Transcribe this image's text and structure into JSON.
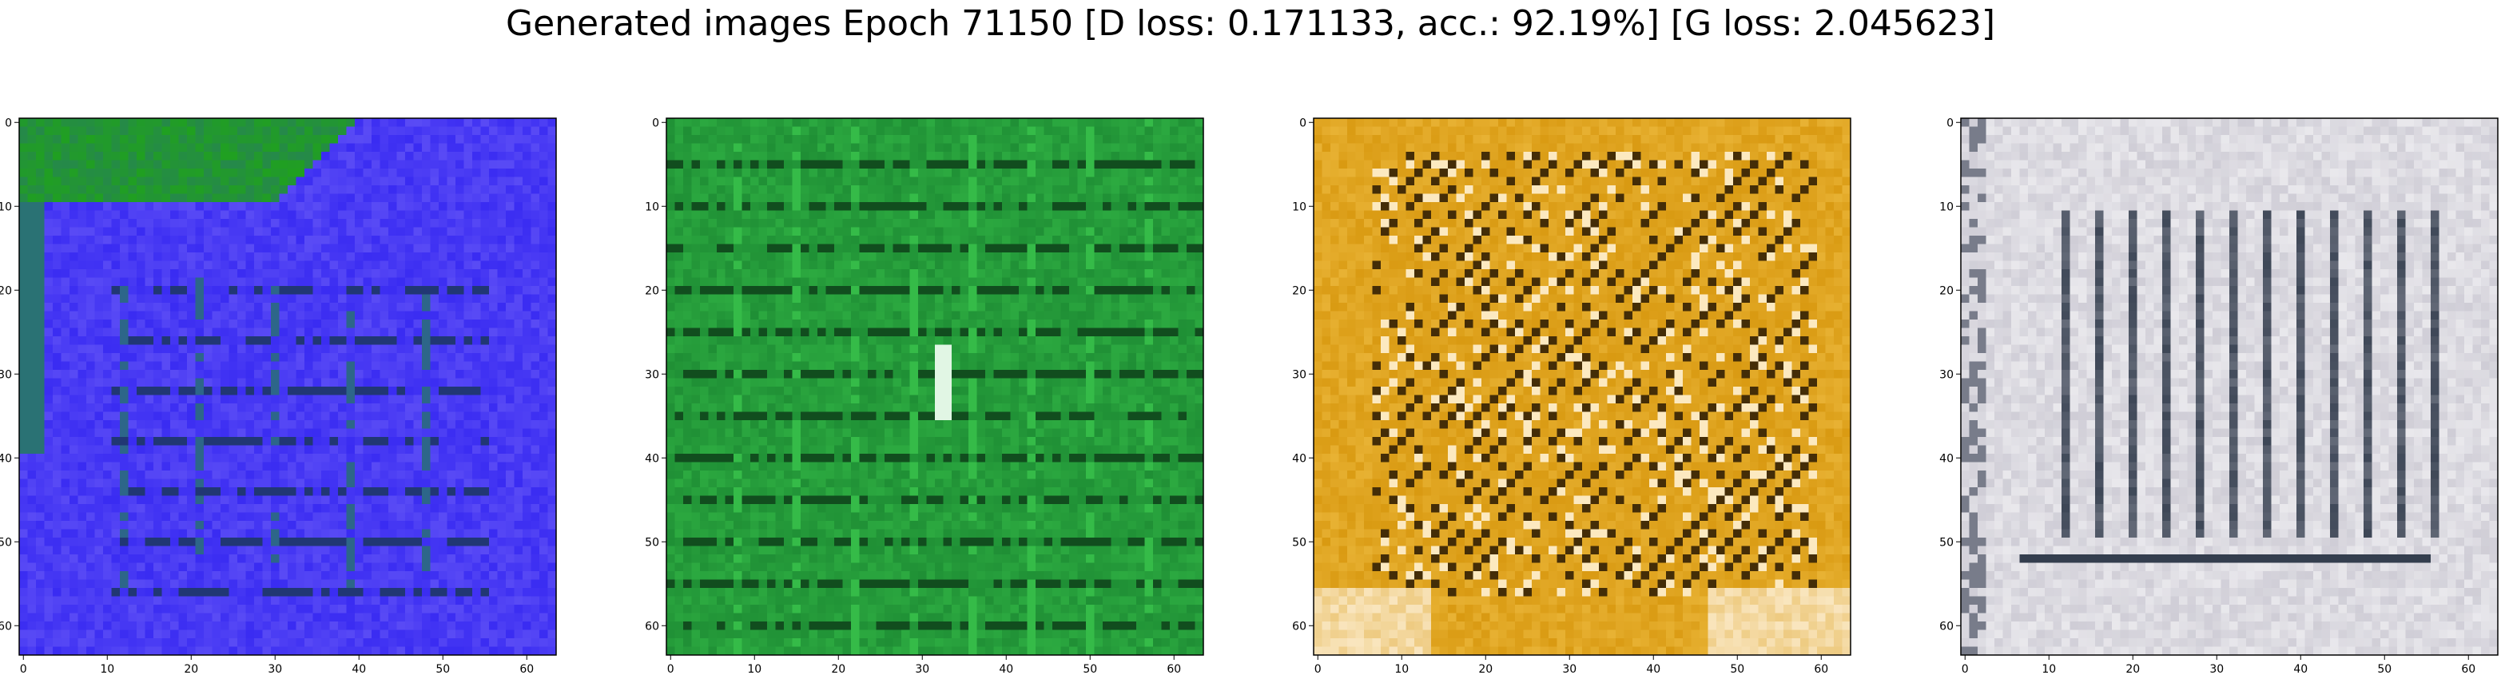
{
  "figure": {
    "title": "Generated images Epoch 71150 [D loss: 0.171133, acc.: 92.19%] [G loss: 2.045623]"
  },
  "axes_ticks": {
    "x": [
      "0",
      "10",
      "20",
      "30",
      "40",
      "50",
      "60"
    ],
    "y": [
      "0",
      "10",
      "20",
      "30",
      "40",
      "50",
      "60"
    ]
  },
  "panels": [
    {
      "palette": {
        "bg": "#3a2cf2",
        "accent": "#20a020",
        "dark": "#1b3a55",
        "light": "#b8a8ff"
      }
    },
    {
      "palette": {
        "bg": "#1f8f35",
        "accent": "#37c04a",
        "dark": "#0a2a12",
        "light": "#ffffff"
      }
    },
    {
      "palette": {
        "bg": "#d99a12",
        "accent": "#f2c24a",
        "dark": "#2a1a05",
        "light": "#fff3dd"
      }
    },
    {
      "palette": {
        "bg": "#cfcdd6",
        "accent": "#e8e4f0",
        "dark": "#0d1a2c",
        "light": "#ffffff"
      }
    }
  ]
}
